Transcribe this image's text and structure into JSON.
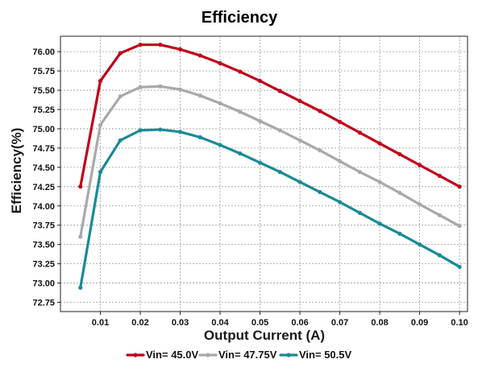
{
  "chart_data": {
    "type": "line",
    "title": "Efficiency",
    "xlabel": "Output Current (A)",
    "ylabel": "Efficiency(%)",
    "xlim": [
      0.0,
      0.102
    ],
    "ylim": [
      72.63,
      76.2
    ],
    "x_ticks": [
      0.01,
      0.02,
      0.03,
      0.04,
      0.05,
      0.06,
      0.07,
      0.08,
      0.09,
      0.1
    ],
    "x_tick_labels": [
      "0.01",
      "0.02",
      "0.03",
      "0.04",
      "0.05",
      "0.06",
      "0.07",
      "0.08",
      "0.09",
      "0.10"
    ],
    "y_ticks": [
      72.75,
      73.0,
      73.25,
      73.5,
      73.75,
      74.0,
      74.25,
      74.5,
      74.75,
      75.0,
      75.25,
      75.5,
      75.75,
      76.0
    ],
    "y_tick_labels": [
      "72.75",
      "73.00",
      "73.25",
      "73.50",
      "73.75",
      "74.00",
      "74.25",
      "74.50",
      "74.75",
      "75.00",
      "75.25",
      "75.50",
      "75.75",
      "76.00"
    ],
    "grid": true,
    "legend_position": "bottom",
    "x": [
      0.005,
      0.01,
      0.015,
      0.02,
      0.025,
      0.03,
      0.035,
      0.04,
      0.045,
      0.05,
      0.055,
      0.06,
      0.065,
      0.07,
      0.075,
      0.08,
      0.085,
      0.09,
      0.095,
      0.1
    ],
    "series": [
      {
        "name": "Vin= 45.0V",
        "color": "#c0001a",
        "values": [
          74.25,
          75.62,
          75.98,
          76.09,
          76.09,
          76.03,
          75.95,
          75.85,
          75.74,
          75.62,
          75.49,
          75.36,
          75.23,
          75.09,
          74.95,
          74.81,
          74.67,
          74.53,
          74.39,
          74.25
        ]
      },
      {
        "name": "Vin= 47.75V",
        "color": "#a9a9a9",
        "values": [
          73.6,
          75.05,
          75.42,
          75.54,
          75.55,
          75.51,
          75.43,
          75.33,
          75.22,
          75.1,
          74.98,
          74.85,
          74.72,
          74.58,
          74.44,
          74.31,
          74.17,
          74.02,
          73.88,
          73.74
        ]
      },
      {
        "name": "Vin= 50.5V",
        "color": "#1a8a96",
        "values": [
          72.94,
          74.44,
          74.85,
          74.98,
          74.99,
          74.96,
          74.89,
          74.79,
          74.68,
          74.56,
          74.44,
          74.31,
          74.18,
          74.05,
          73.91,
          73.77,
          73.64,
          73.5,
          73.36,
          73.21
        ]
      }
    ]
  }
}
